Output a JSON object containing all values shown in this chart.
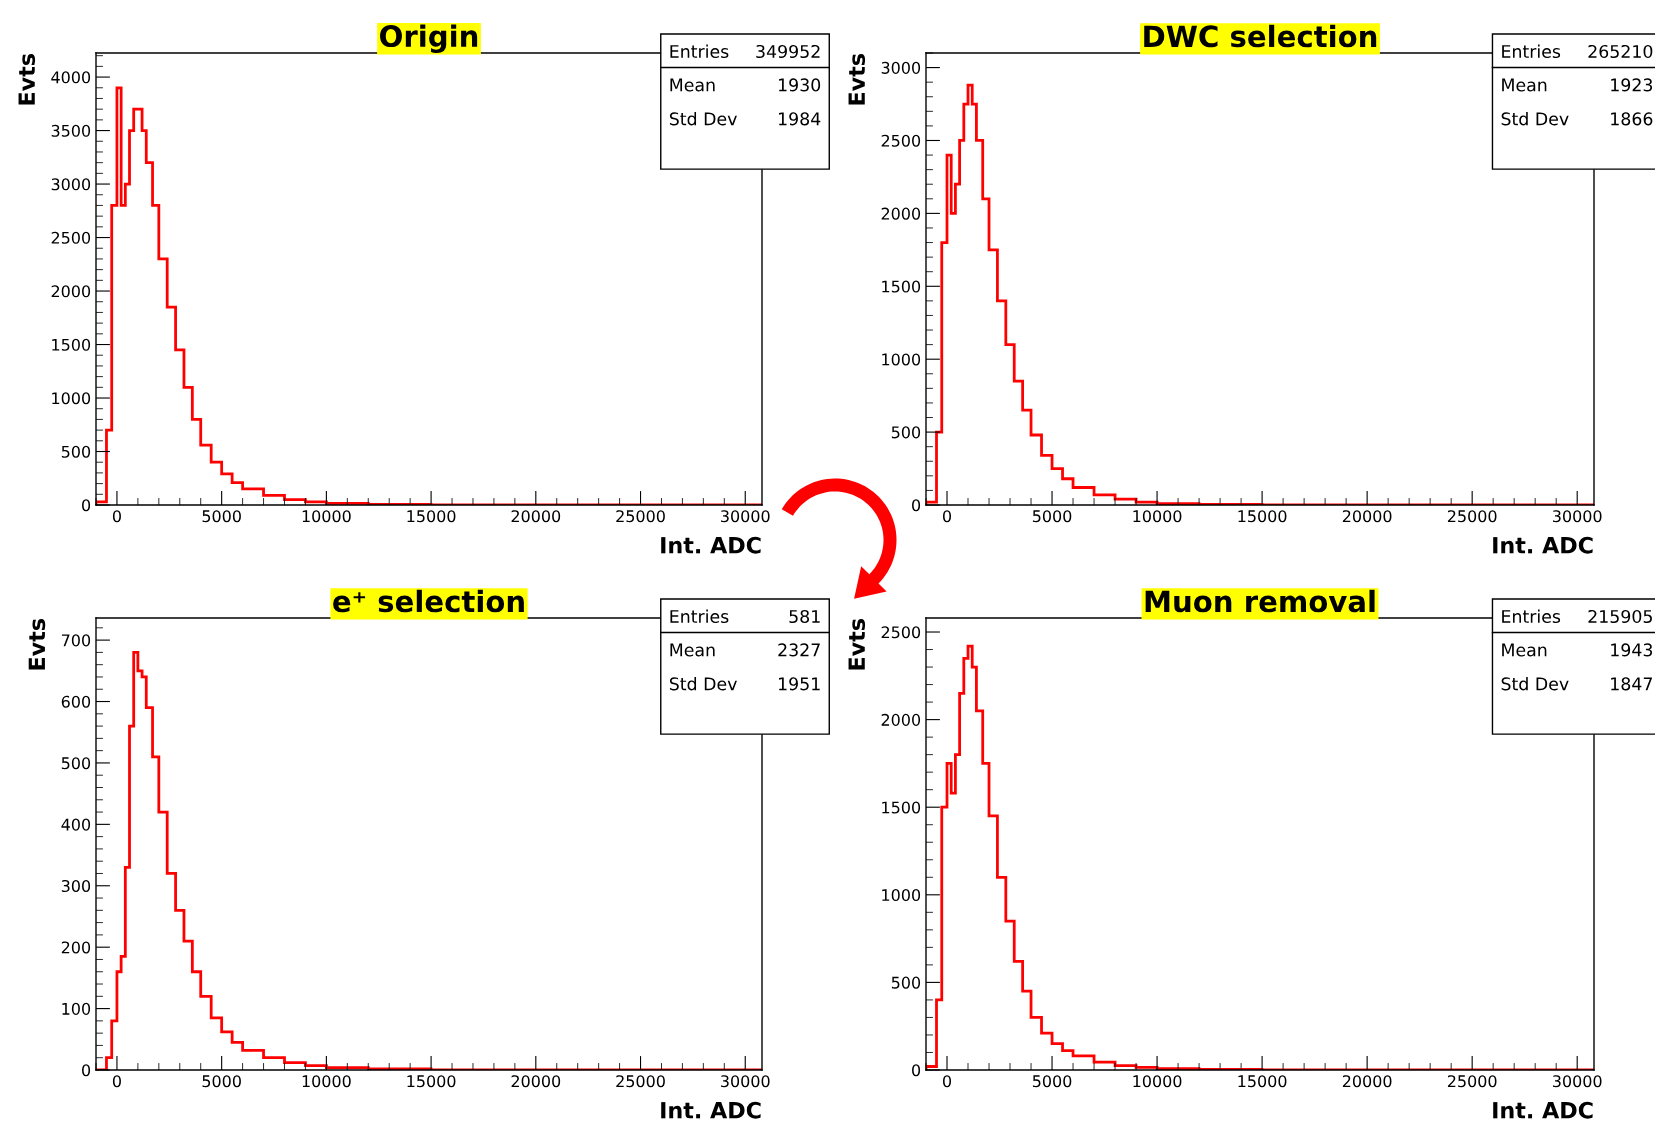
{
  "chart_data": [
    {
      "type": "histogram",
      "title": "Origin",
      "xlabel": "Int. ADC",
      "ylabel": "Evts",
      "color": "#ff0000",
      "xlim": [
        -1000,
        30800
      ],
      "xticks": [
        0,
        5000,
        10000,
        15000,
        20000,
        25000,
        30000
      ],
      "ylim": [
        0,
        4225
      ],
      "yticks": [
        0,
        500,
        1000,
        1500,
        2000,
        2500,
        3000,
        3500,
        4000
      ],
      "bins": [
        -1000,
        -500,
        -250,
        0,
        200,
        400,
        600,
        800,
        1000,
        1200,
        1400,
        1700,
        2000,
        2400,
        2800,
        3200,
        3600,
        4000,
        4500,
        5000,
        5500,
        6000,
        7000,
        8000,
        9000,
        10000,
        12000,
        15000,
        20000,
        30800
      ],
      "values": [
        30,
        700,
        2800,
        3900,
        2800,
        3000,
        3500,
        3700,
        3700,
        3500,
        3200,
        2800,
        2300,
        1850,
        1450,
        1100,
        800,
        560,
        400,
        290,
        210,
        150,
        90,
        50,
        30,
        15,
        5,
        0,
        0
      ],
      "annotations": [
        "Entries",
        "349952",
        "Mean",
        "1930",
        "Std Dev",
        "1984"
      ]
    },
    {
      "type": "histogram",
      "title": "DWC selection",
      "xlabel": "Int. ADC",
      "ylabel": "Evts",
      "color": "#ff0000",
      "xlim": [
        -1000,
        30800
      ],
      "xticks": [
        0,
        5000,
        10000,
        15000,
        20000,
        25000,
        30000
      ],
      "ylim": [
        0,
        3100
      ],
      "yticks": [
        0,
        500,
        1000,
        1500,
        2000,
        2500,
        3000
      ],
      "bins": [
        -1000,
        -500,
        -250,
        0,
        200,
        400,
        600,
        800,
        1000,
        1200,
        1400,
        1700,
        2000,
        2400,
        2800,
        3200,
        3600,
        4000,
        4500,
        5000,
        5500,
        6000,
        7000,
        8000,
        9000,
        10000,
        12000,
        15000,
        20000,
        30800
      ],
      "values": [
        20,
        500,
        1800,
        2400,
        2000,
        2200,
        2500,
        2750,
        2880,
        2750,
        2500,
        2100,
        1750,
        1400,
        1100,
        850,
        650,
        480,
        340,
        250,
        180,
        120,
        70,
        40,
        20,
        10,
        5,
        0,
        0
      ],
      "annotations": [
        "Entries",
        "265210",
        "Mean",
        "1923",
        "Std Dev",
        "1866"
      ]
    },
    {
      "type": "histogram",
      "title": "e⁺ selection",
      "xlabel": "Int. ADC",
      "ylabel": "Evts",
      "color": "#ff0000",
      "xlim": [
        -1000,
        30800
      ],
      "xticks": [
        0,
        5000,
        10000,
        15000,
        20000,
        25000,
        30000
      ],
      "ylim": [
        0,
        736
      ],
      "yticks": [
        0,
        100,
        200,
        300,
        400,
        500,
        600,
        700
      ],
      "bins": [
        -1000,
        -500,
        -250,
        0,
        200,
        400,
        600,
        800,
        1000,
        1200,
        1400,
        1700,
        2000,
        2400,
        2800,
        3200,
        3600,
        4000,
        4500,
        5000,
        5500,
        6000,
        7000,
        8000,
        9000,
        10000,
        12000,
        15000,
        20000,
        30800
      ],
      "values": [
        0,
        20,
        80,
        160,
        185,
        330,
        560,
        680,
        650,
        640,
        590,
        510,
        420,
        320,
        260,
        210,
        160,
        120,
        85,
        62,
        45,
        32,
        20,
        12,
        7,
        4,
        2,
        0,
        0
      ],
      "annotations": [
        "Entries",
        "581",
        "Mean",
        "2327",
        "Std Dev",
        "1951"
      ]
    },
    {
      "type": "histogram",
      "title": "Muon removal",
      "xlabel": "Int. ADC",
      "ylabel": "Evts",
      "color": "#ff0000",
      "xlim": [
        -1000,
        30800
      ],
      "xticks": [
        0,
        5000,
        10000,
        15000,
        20000,
        25000,
        30000
      ],
      "ylim": [
        0,
        2580
      ],
      "yticks": [
        0,
        500,
        1000,
        1500,
        2000,
        2500
      ],
      "bins": [
        -1000,
        -500,
        -250,
        0,
        200,
        400,
        600,
        800,
        1000,
        1200,
        1400,
        1700,
        2000,
        2400,
        2800,
        3200,
        3600,
        4000,
        4500,
        5000,
        5500,
        6000,
        7000,
        8000,
        9000,
        10000,
        12000,
        15000,
        20000,
        30800
      ],
      "values": [
        20,
        400,
        1500,
        1750,
        1580,
        1800,
        2150,
        2350,
        2420,
        2300,
        2050,
        1750,
        1450,
        1100,
        850,
        620,
        450,
        300,
        210,
        150,
        110,
        80,
        45,
        25,
        15,
        8,
        3,
        0,
        0
      ],
      "annotations": [
        "Entries",
        "215905",
        "Mean",
        "1943",
        "Std Dev",
        "1847"
      ]
    }
  ]
}
